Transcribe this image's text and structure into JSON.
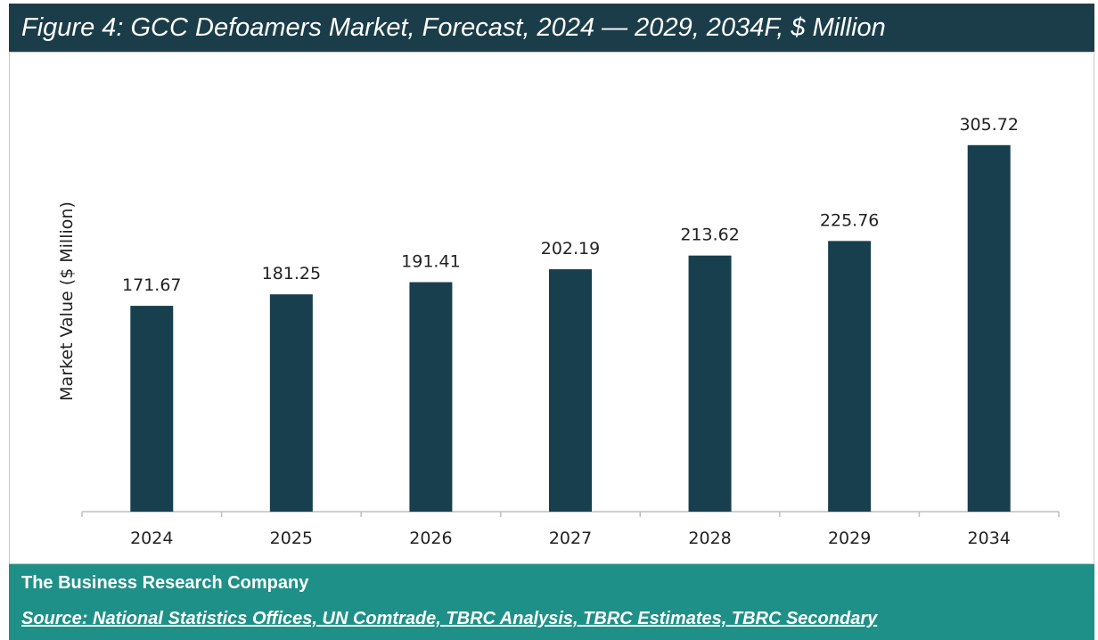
{
  "header": {
    "title": "Figure 4: GCC Defoamers Market, Forecast, 2024 — 2029, 2034F, $ Million"
  },
  "footer": {
    "company": "The Business Research Company",
    "source": "Source: National Statistics Offices, UN Comtrade, TBRC Analysis, TBRC Estimates, TBRC Secondary"
  },
  "colors": {
    "title_bg": "#1b3d4a",
    "bar": "#173f4e",
    "footer_bg": "#1f9087"
  },
  "chart_data": {
    "type": "bar",
    "title": "Figure 4: GCC Defoamers Market, Forecast, 2024 — 2029, 2034F, $ Million",
    "xlabel": "",
    "ylabel": "Market Value ($ Million)",
    "categories": [
      "2024",
      "2025",
      "2026",
      "2027",
      "2028",
      "2029",
      "2034"
    ],
    "values": [
      171.67,
      181.25,
      191.41,
      202.19,
      213.62,
      225.76,
      305.72
    ],
    "value_labels": [
      "171.67",
      "181.25",
      "191.41",
      "202.19",
      "213.62",
      "225.76",
      "305.72"
    ],
    "ylim": [
      0,
      330
    ],
    "grid": false,
    "legend": "none"
  }
}
